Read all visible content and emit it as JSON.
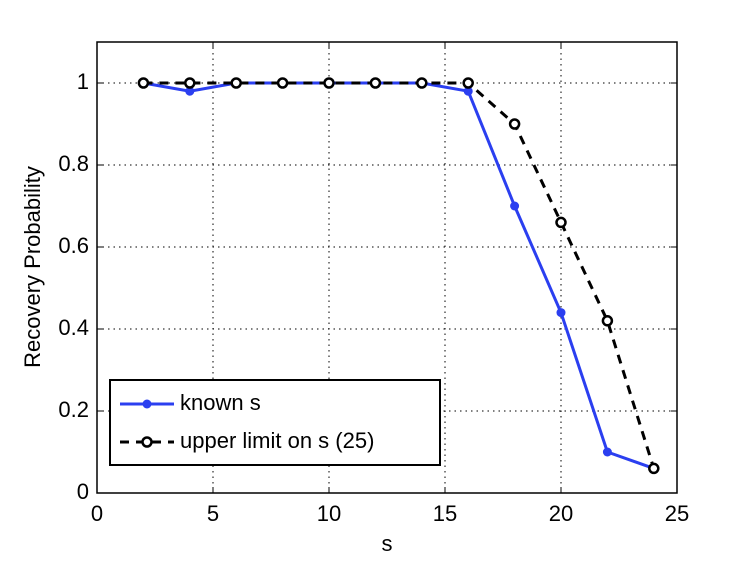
{
  "chart_data": {
    "type": "line",
    "x_label": "s",
    "y_label": "Recovery Probability",
    "x": [
      2,
      4,
      6,
      8,
      10,
      12,
      14,
      16,
      18,
      20,
      22,
      24
    ],
    "series": [
      {
        "name": "known s",
        "color": "#2b3ff0",
        "line_style": "solid",
        "marker": "dot",
        "values": [
          1,
          0.98,
          1,
          1,
          1,
          1,
          1,
          0.98,
          0.7,
          0.44,
          0.1,
          0.06
        ]
      },
      {
        "name": "upper limit on s (25)",
        "color": "#000000",
        "line_style": "dashed",
        "marker": "open-circle",
        "values": [
          1,
          1,
          1,
          1,
          1,
          1,
          1,
          1,
          0.9,
          0.66,
          0.42,
          0.06
        ]
      }
    ],
    "xlim": [
      0,
      25
    ],
    "xticks": [
      0,
      5,
      10,
      15,
      20,
      25
    ],
    "ylim": [
      0,
      1.1
    ],
    "yticks": [
      0,
      0.2,
      0.4,
      0.6,
      0.8,
      1
    ],
    "grid": true,
    "legend": "lower left"
  }
}
